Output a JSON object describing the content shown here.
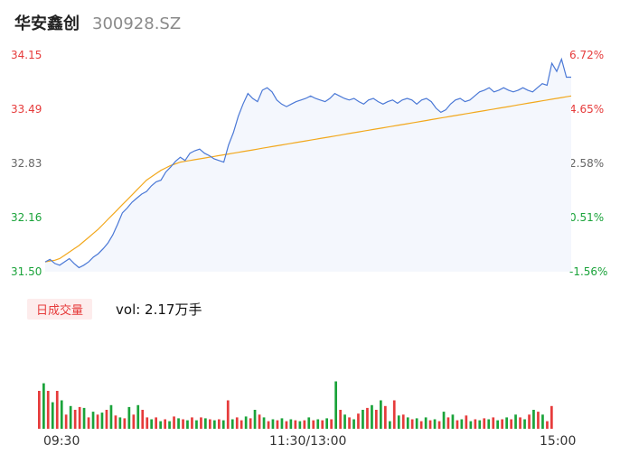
{
  "header": {
    "name": "华安鑫创",
    "code": "300928.SZ"
  },
  "price_axis": {
    "left_labels": [
      "34.15",
      "33.49",
      "32.83",
      "32.16",
      "31.50"
    ],
    "right_labels": [
      "6.72%",
      "4.65%",
      "2.58%",
      "0.51%",
      "-1.56%"
    ]
  },
  "volume_panel": {
    "tag_label": "日成交量",
    "vol_label": "vol: 2.17万手"
  },
  "x_labels": [
    "09:30",
    "11:30/13:00",
    "15:00"
  ],
  "colors": {
    "price": "#4a78d6",
    "avg": "#f2a81d",
    "up": "#e63b3b",
    "down": "#1aa33a",
    "fill": "#f4f7fd"
  },
  "chart_data": [
    {
      "type": "line",
      "ylim": [
        31.5,
        34.15
      ],
      "series": [
        {
          "values": [
            31.62,
            31.65,
            31.6,
            31.58,
            31.62,
            31.66,
            31.6,
            31.55,
            31.58,
            31.62,
            31.68,
            31.72,
            31.78,
            31.85,
            31.95,
            32.08,
            32.22,
            32.28,
            32.35,
            32.4,
            32.45,
            32.48,
            32.55,
            32.6,
            32.62,
            32.72,
            32.78,
            32.85,
            32.9,
            32.86,
            32.95,
            32.98,
            33.0,
            32.95,
            32.92,
            32.88,
            32.86,
            32.84,
            33.05,
            33.2,
            33.4,
            33.55,
            33.68,
            33.62,
            33.58,
            33.72,
            33.75,
            33.7,
            33.6,
            33.55,
            33.52,
            33.55,
            33.58,
            33.6,
            33.62,
            33.65,
            33.62,
            33.6,
            33.58,
            33.62,
            33.68,
            33.65,
            33.62,
            33.6,
            33.62,
            33.58,
            33.55,
            33.6,
            33.62,
            33.58,
            33.55,
            33.58,
            33.6,
            33.56,
            33.6,
            33.62,
            33.6,
            33.55,
            33.6,
            33.62,
            33.58,
            33.5,
            33.45,
            33.48,
            33.55,
            33.6,
            33.62,
            33.58,
            33.6,
            33.65,
            33.7,
            33.72,
            33.75,
            33.7,
            33.72,
            33.75,
            33.72,
            33.7,
            33.72,
            33.75,
            33.72,
            33.7,
            33.75,
            33.8,
            33.78,
            34.05,
            33.95,
            34.1,
            33.88,
            33.88
          ]
        },
        {
          "values": [
            31.62,
            31.63,
            31.64,
            31.66,
            31.7,
            31.74,
            31.78,
            31.82,
            31.87,
            31.92,
            31.97,
            32.02,
            32.08,
            32.14,
            32.2,
            32.26,
            32.32,
            32.38,
            32.44,
            32.5,
            32.56,
            32.62,
            32.66,
            32.7,
            32.74,
            32.77,
            32.8,
            32.82,
            32.84,
            32.85,
            32.86,
            32.87,
            32.88,
            32.89,
            32.9,
            32.91,
            32.92,
            32.93,
            32.94,
            32.95,
            32.96,
            32.97,
            32.98,
            32.99,
            33.0,
            33.01,
            33.02,
            33.03,
            33.04,
            33.05,
            33.06,
            33.07,
            33.08,
            33.09,
            33.1,
            33.11,
            33.12,
            33.13,
            33.14,
            33.15,
            33.16,
            33.17,
            33.18,
            33.19,
            33.2,
            33.21,
            33.22,
            33.23,
            33.24,
            33.25,
            33.26,
            33.27,
            33.28,
            33.29,
            33.3,
            33.31,
            33.32,
            33.33,
            33.34,
            33.35,
            33.36,
            33.37,
            33.38,
            33.39,
            33.4,
            33.41,
            33.42,
            33.43,
            33.44,
            33.45,
            33.46,
            33.47,
            33.48,
            33.49,
            33.5,
            33.51,
            33.52,
            33.53,
            33.54,
            33.55,
            33.56,
            33.57,
            33.58,
            33.59,
            33.6,
            33.61,
            33.62,
            33.63,
            33.64,
            33.65
          ]
        }
      ]
    },
    {
      "type": "bar",
      "values": [
        0.4,
        0.48,
        0.4,
        0.28,
        0.4,
        0.3,
        0.15,
        0.24,
        0.2,
        0.23,
        0.22,
        0.12,
        0.18,
        0.15,
        0.17,
        0.2,
        0.25,
        0.14,
        0.12,
        0.11,
        0.23,
        0.15,
        0.25,
        0.2,
        0.12,
        0.1,
        0.12,
        0.08,
        0.1,
        0.08,
        0.13,
        0.11,
        0.1,
        0.09,
        0.12,
        0.09,
        0.12,
        0.11,
        0.1,
        0.09,
        0.1,
        0.09,
        0.3,
        0.1,
        0.12,
        0.09,
        0.13,
        0.11,
        0.2,
        0.15,
        0.12,
        0.08,
        0.1,
        0.09,
        0.11,
        0.08,
        0.1,
        0.09,
        0.08,
        0.09,
        0.12,
        0.09,
        0.1,
        0.09,
        0.11,
        0.1,
        0.5,
        0.2,
        0.15,
        0.12,
        0.1,
        0.16,
        0.2,
        0.22,
        0.25,
        0.2,
        0.3,
        0.24,
        0.08,
        0.3,
        0.14,
        0.15,
        0.12,
        0.1,
        0.11,
        0.08,
        0.12,
        0.09,
        0.1,
        0.08,
        0.18,
        0.12,
        0.15,
        0.09,
        0.1,
        0.14,
        0.08,
        0.1,
        0.09,
        0.11,
        0.1,
        0.12,
        0.09,
        0.1,
        0.12,
        0.1,
        0.15,
        0.12,
        0.1,
        0.15,
        0.2,
        0.18,
        0.15,
        0.08,
        0.24
      ],
      "colors": [
        "up",
        "down",
        "up",
        "down",
        "up",
        "down",
        "up",
        "down",
        "up",
        "up",
        "down",
        "up",
        "down",
        "up",
        "down",
        "up",
        "down",
        "up",
        "down",
        "up",
        "down",
        "up",
        "down",
        "up",
        "up",
        "down",
        "up",
        "down",
        "up",
        "down",
        "up",
        "down",
        "up",
        "down",
        "up",
        "down",
        "up",
        "down",
        "up",
        "down",
        "up",
        "down",
        "up",
        "down",
        "up",
        "up",
        "down",
        "up",
        "down",
        "up",
        "down",
        "up",
        "down",
        "up",
        "down",
        "up",
        "down",
        "up",
        "down",
        "up",
        "down",
        "up",
        "down",
        "up",
        "down",
        "up",
        "down",
        "up",
        "down",
        "up",
        "down",
        "up",
        "down",
        "up",
        "down",
        "up",
        "down",
        "up",
        "down",
        "up",
        "down",
        "up",
        "down",
        "up",
        "down",
        "up",
        "down",
        "up",
        "down",
        "up",
        "down",
        "up",
        "down",
        "up",
        "down",
        "up",
        "down",
        "up",
        "down",
        "up",
        "down",
        "up",
        "down",
        "up",
        "down",
        "up",
        "down",
        "up",
        "down",
        "up",
        "down",
        "up",
        "down",
        "up",
        "up"
      ]
    }
  ]
}
